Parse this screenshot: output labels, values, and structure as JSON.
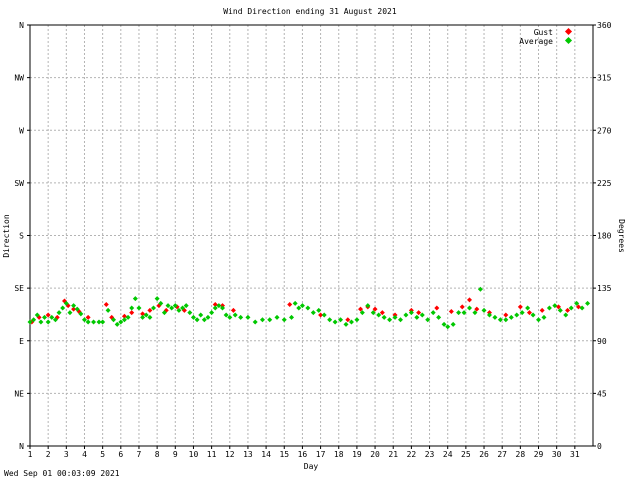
{
  "chart_data": {
    "type": "scatter",
    "title": "Wind Direction ending 31 August 2021",
    "xlabel": "Day",
    "ylabel_left": "Direction",
    "ylabel_right": "Degrees",
    "x_ticks": [
      "1",
      "2",
      "3",
      "4",
      "5",
      "6",
      "7",
      "8",
      "9",
      "10",
      "11",
      "12",
      "13",
      "14",
      "15",
      "16",
      "17",
      "18",
      "19",
      "20",
      "21",
      "22",
      "23",
      "24",
      "25",
      "26",
      "27",
      "28",
      "29",
      "30",
      "31"
    ],
    "xlim": [
      1,
      32
    ],
    "ylim": [
      0,
      360
    ],
    "y_ticks_left": [
      {
        "value": 0,
        "label": "N"
      },
      {
        "value": 45,
        "label": "NE"
      },
      {
        "value": 90,
        "label": "E"
      },
      {
        "value": 135,
        "label": "SE"
      },
      {
        "value": 180,
        "label": "S"
      },
      {
        "value": 225,
        "label": "SW"
      },
      {
        "value": 270,
        "label": "W"
      },
      {
        "value": 315,
        "label": "NW"
      },
      {
        "value": 360,
        "label": "N"
      }
    ],
    "y_ticks_right": [
      0,
      45,
      90,
      135,
      180,
      225,
      270,
      315,
      360
    ],
    "grid": true,
    "legend": "top-right",
    "series": [
      {
        "name": "Gust",
        "color": "#ff0000",
        "points": [
          [
            1.1,
            106
          ],
          [
            1.5,
            110
          ],
          [
            2.0,
            112
          ],
          [
            2.5,
            110
          ],
          [
            2.9,
            124
          ],
          [
            3.1,
            120
          ],
          [
            3.4,
            117
          ],
          [
            3.7,
            115
          ],
          [
            4.2,
            110
          ],
          [
            5.2,
            121
          ],
          [
            5.5,
            110
          ],
          [
            6.2,
            111
          ],
          [
            6.6,
            114
          ],
          [
            7.2,
            113
          ],
          [
            7.6,
            116
          ],
          [
            8.1,
            120
          ],
          [
            8.5,
            116
          ],
          [
            9.1,
            119
          ],
          [
            9.5,
            116
          ],
          [
            11.2,
            121
          ],
          [
            11.6,
            120
          ],
          [
            12.2,
            116
          ],
          [
            15.3,
            121
          ],
          [
            17.0,
            112
          ],
          [
            18.5,
            108
          ],
          [
            19.2,
            117
          ],
          [
            19.6,
            119
          ],
          [
            20.0,
            117
          ],
          [
            20.4,
            114
          ],
          [
            21.1,
            112
          ],
          [
            22.0,
            116
          ],
          [
            22.4,
            114
          ],
          [
            23.4,
            118
          ],
          [
            24.2,
            115
          ],
          [
            24.8,
            119
          ],
          [
            25.2,
            125
          ],
          [
            25.6,
            117
          ],
          [
            26.3,
            114
          ],
          [
            27.2,
            112
          ],
          [
            28.0,
            119
          ],
          [
            28.5,
            114
          ],
          [
            29.2,
            116
          ],
          [
            30.1,
            119
          ],
          [
            30.6,
            116
          ],
          [
            31.2,
            119
          ]
        ]
      },
      {
        "name": "Average",
        "color": "#00c800",
        "points": [
          [
            1.0,
            106
          ],
          [
            1.2,
            108
          ],
          [
            1.4,
            112
          ],
          [
            1.6,
            106
          ],
          [
            1.8,
            110
          ],
          [
            2.0,
            106
          ],
          [
            2.2,
            110
          ],
          [
            2.4,
            108
          ],
          [
            2.6,
            114
          ],
          [
            2.8,
            118
          ],
          [
            3.0,
            122
          ],
          [
            3.2,
            114
          ],
          [
            3.4,
            120
          ],
          [
            3.6,
            117
          ],
          [
            3.8,
            113
          ],
          [
            4.0,
            108
          ],
          [
            4.2,
            106
          ],
          [
            4.5,
            106
          ],
          [
            4.8,
            106
          ],
          [
            5.0,
            106
          ],
          [
            5.3,
            116
          ],
          [
            5.6,
            108
          ],
          [
            5.8,
            104
          ],
          [
            6.0,
            106
          ],
          [
            6.2,
            108
          ],
          [
            6.4,
            110
          ],
          [
            6.6,
            118
          ],
          [
            6.8,
            126
          ],
          [
            7.0,
            118
          ],
          [
            7.2,
            110
          ],
          [
            7.4,
            112
          ],
          [
            7.6,
            110
          ],
          [
            7.8,
            118
          ],
          [
            8.0,
            126
          ],
          [
            8.2,
            122
          ],
          [
            8.4,
            114
          ],
          [
            8.6,
            120
          ],
          [
            8.8,
            118
          ],
          [
            9.0,
            120
          ],
          [
            9.2,
            116
          ],
          [
            9.4,
            118
          ],
          [
            9.6,
            120
          ],
          [
            9.8,
            114
          ],
          [
            10.0,
            110
          ],
          [
            10.2,
            108
          ],
          [
            10.4,
            112
          ],
          [
            10.6,
            108
          ],
          [
            10.8,
            110
          ],
          [
            11.0,
            114
          ],
          [
            11.2,
            118
          ],
          [
            11.4,
            120
          ],
          [
            11.6,
            118
          ],
          [
            11.8,
            112
          ],
          [
            12.0,
            110
          ],
          [
            12.3,
            112
          ],
          [
            12.6,
            110
          ],
          [
            13.0,
            110
          ],
          [
            13.4,
            106
          ],
          [
            13.8,
            108
          ],
          [
            14.2,
            108
          ],
          [
            14.6,
            110
          ],
          [
            15.0,
            108
          ],
          [
            15.4,
            110
          ],
          [
            15.6,
            122
          ],
          [
            15.8,
            118
          ],
          [
            16.0,
            120
          ],
          [
            16.3,
            118
          ],
          [
            16.6,
            114
          ],
          [
            16.9,
            116
          ],
          [
            17.2,
            112
          ],
          [
            17.5,
            108
          ],
          [
            17.8,
            106
          ],
          [
            18.1,
            108
          ],
          [
            18.4,
            104
          ],
          [
            18.7,
            106
          ],
          [
            19.0,
            108
          ],
          [
            19.3,
            114
          ],
          [
            19.6,
            120
          ],
          [
            19.9,
            114
          ],
          [
            20.2,
            112
          ],
          [
            20.5,
            110
          ],
          [
            20.8,
            108
          ],
          [
            21.1,
            110
          ],
          [
            21.4,
            108
          ],
          [
            21.7,
            112
          ],
          [
            22.0,
            114
          ],
          [
            22.3,
            110
          ],
          [
            22.6,
            112
          ],
          [
            22.9,
            108
          ],
          [
            23.2,
            114
          ],
          [
            23.5,
            110
          ],
          [
            23.8,
            104
          ],
          [
            24.0,
            102
          ],
          [
            24.3,
            104
          ],
          [
            24.6,
            114
          ],
          [
            24.9,
            114
          ],
          [
            25.2,
            118
          ],
          [
            25.5,
            114
          ],
          [
            25.8,
            134
          ],
          [
            26.0,
            116
          ],
          [
            26.3,
            112
          ],
          [
            26.6,
            110
          ],
          [
            26.9,
            108
          ],
          [
            27.2,
            108
          ],
          [
            27.5,
            110
          ],
          [
            27.8,
            112
          ],
          [
            28.1,
            114
          ],
          [
            28.4,
            118
          ],
          [
            28.7,
            112
          ],
          [
            29.0,
            108
          ],
          [
            29.3,
            110
          ],
          [
            29.6,
            118
          ],
          [
            29.9,
            120
          ],
          [
            30.2,
            116
          ],
          [
            30.5,
            112
          ],
          [
            30.8,
            118
          ],
          [
            31.1,
            122
          ],
          [
            31.4,
            118
          ],
          [
            31.7,
            122
          ]
        ]
      }
    ]
  },
  "footer": {
    "timestamp": "Wed Sep 01 00:03:09 2021"
  }
}
